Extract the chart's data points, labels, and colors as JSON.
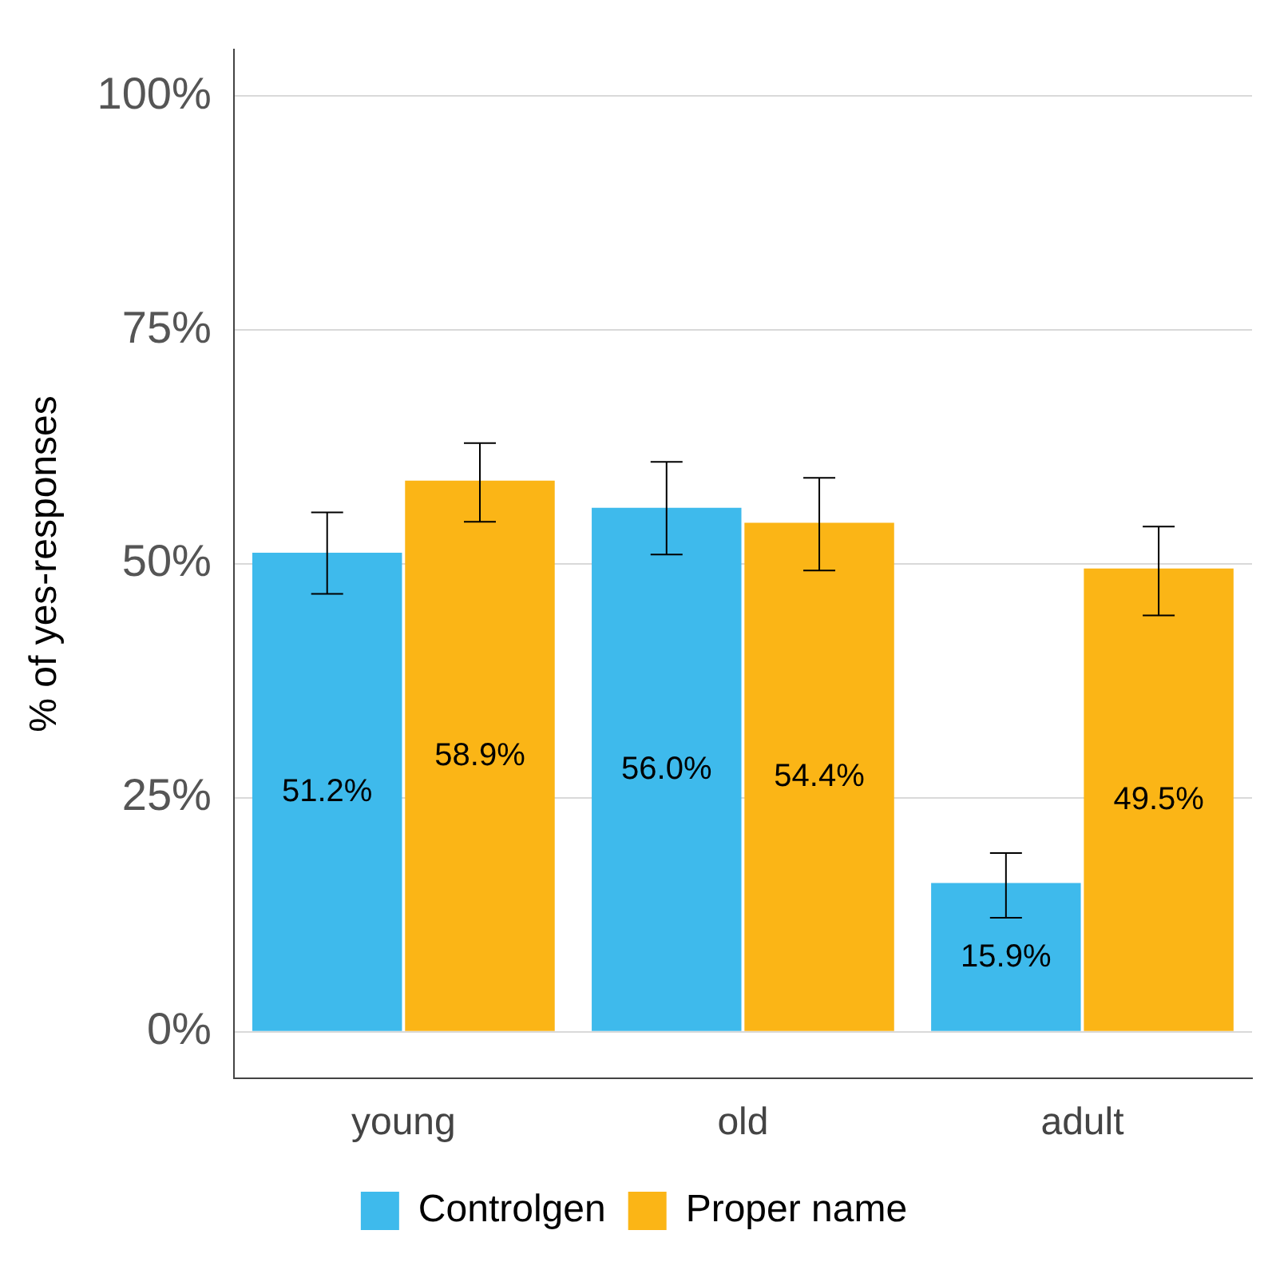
{
  "chart_data": {
    "type": "bar",
    "ylabel": "% of yes-responses",
    "categories": [
      "young",
      "old",
      "adult"
    ],
    "series": [
      {
        "name": "Controlgen",
        "color": "#3ebaec",
        "values": [
          51.2,
          56.0,
          15.9
        ],
        "value_labels": [
          "51.2%",
          "56.0%",
          "15.9%"
        ],
        "errors": [
          [
            46.8,
            55.5
          ],
          [
            51.0,
            60.9
          ],
          [
            12.2,
            19.1
          ]
        ]
      },
      {
        "name": "Proper name",
        "color": "#fbb516",
        "values": [
          58.9,
          54.4,
          49.5
        ],
        "value_labels": [
          "58.9%",
          "54.4%",
          "49.5%"
        ],
        "errors": [
          [
            54.5,
            62.9
          ],
          [
            49.3,
            59.2
          ],
          [
            44.5,
            54.0
          ]
        ]
      }
    ],
    "ylim": [
      -5,
      105
    ],
    "yticks": [
      {
        "value": 0,
        "label": "0%"
      },
      {
        "value": 25,
        "label": "25%"
      },
      {
        "value": 50,
        "label": "50%"
      },
      {
        "value": 75,
        "label": "75%"
      },
      {
        "value": 100,
        "label": "100%"
      }
    ],
    "grid": "y",
    "legend": "bottom"
  }
}
